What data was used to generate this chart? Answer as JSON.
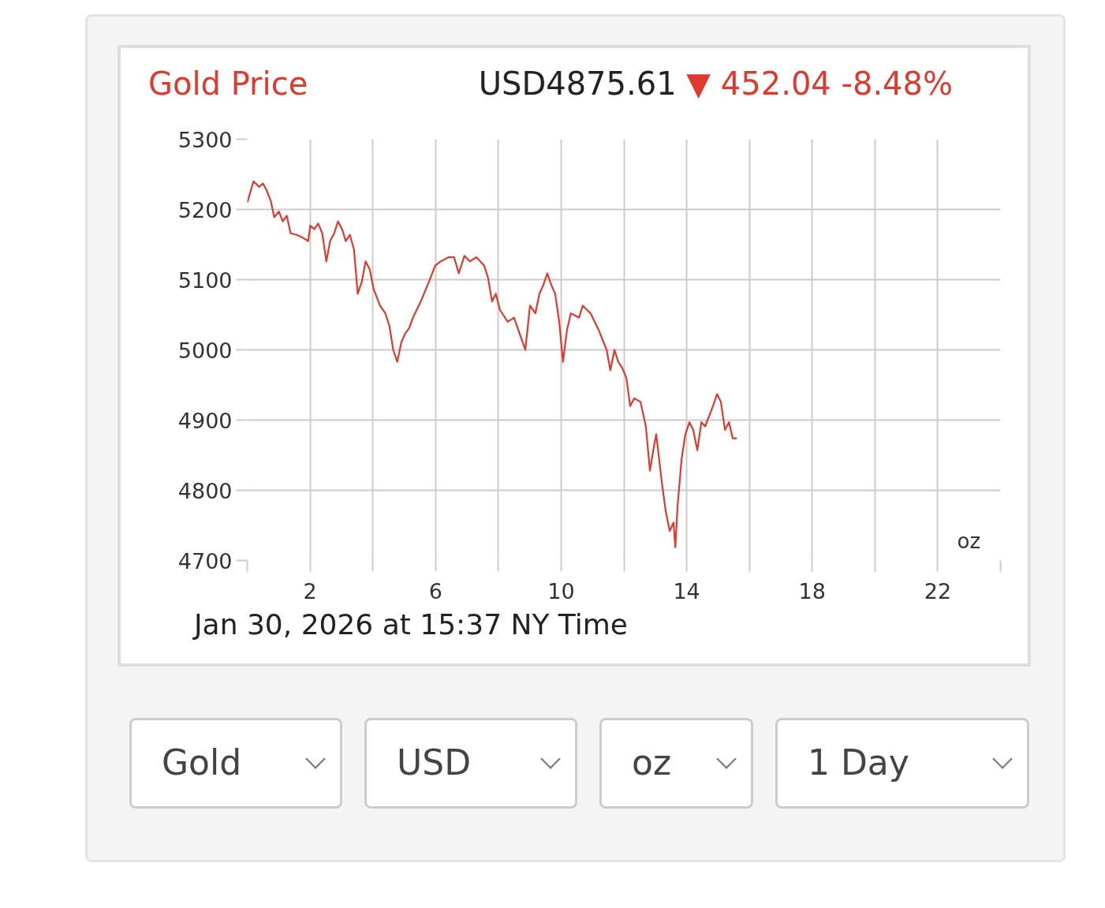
{
  "chart_data": {
    "type": "line",
    "title": "Gold Price",
    "annotations": [
      "USD4875.61",
      "▼ 452.04 -8.48%",
      "Jan 30, 2026 at 15:37 NY Time",
      "oz",
      "Gold",
      "USD",
      "oz",
      "1 Day"
    ],
    "series": [
      {
        "color": "#e03a2e",
        "x": [
          0,
          0.2,
          0.38,
          0.5,
          0.63,
          0.75,
          0.86,
          1.01,
          1.13,
          1.26,
          1.38,
          1.56,
          1.76,
          1.94,
          2.01,
          2.14,
          2.26,
          2.39,
          2.52,
          2.64,
          2.77,
          2.89,
          3.02,
          3.14,
          3.27,
          3.4,
          3.52,
          3.65,
          3.77,
          3.9,
          4.03,
          4.23,
          4.4,
          4.53,
          4.65,
          4.78,
          4.91,
          5.03,
          5.16,
          5.28,
          5.53,
          5.79,
          5.99,
          6.16,
          6.42,
          6.59,
          6.74,
          6.92,
          7.09,
          7.3,
          7.55,
          7.67,
          7.8,
          7.92,
          8.05,
          8.3,
          8.5,
          8.68,
          8.86,
          9.01,
          9.18,
          9.31,
          9.43,
          9.56,
          9.69,
          9.81,
          9.94,
          10.06,
          10.19,
          10.31,
          10.57,
          10.69,
          10.94,
          11.19,
          11.45,
          11.57,
          11.7,
          11.82,
          11.95,
          12.08,
          12.2,
          12.33,
          12.53,
          12.7,
          12.83,
          12.96,
          13.03,
          13.21,
          13.33,
          13.46,
          13.58,
          13.64,
          13.71,
          13.84,
          13.96,
          14.09,
          14.21,
          14.34,
          14.47,
          14.59,
          14.84,
          14.97,
          15.09,
          15.22,
          15.35,
          15.47,
          15.6
        ],
        "values": [
          5210,
          5240,
          5232,
          5237,
          5226,
          5212,
          5189,
          5197,
          5183,
          5191,
          5166,
          5164,
          5160,
          5155,
          5177,
          5172,
          5180,
          5166,
          5126,
          5155,
          5166,
          5183,
          5172,
          5155,
          5164,
          5143,
          5080,
          5097,
          5126,
          5115,
          5086,
          5063,
          5052,
          5034,
          5000,
          4983,
          5011,
          5023,
          5031,
          5046,
          5069,
          5097,
          5120,
          5126,
          5132,
          5132,
          5109,
          5134,
          5126,
          5132,
          5120,
          5103,
          5069,
          5080,
          5057,
          5040,
          5046,
          5023,
          5000,
          5063,
          5052,
          5080,
          5092,
          5109,
          5092,
          5080,
          5040,
          4983,
          5029,
          5052,
          5046,
          5063,
          5052,
          5029,
          5000,
          4971,
          5000,
          4983,
          4974,
          4960,
          4920,
          4931,
          4926,
          4891,
          4828,
          4863,
          4880,
          4811,
          4771,
          4742,
          4754,
          4719,
          4777,
          4845,
          4880,
          4897,
          4886,
          4857,
          4897,
          4891,
          4920,
          4937,
          4926,
          4886,
          4897,
          4874,
          4874
        ]
      }
    ],
    "xlim": [
      0,
      24
    ],
    "xticks": [
      {
        "value": 0,
        "label": null
      },
      2,
      {
        "value": 4,
        "label": null
      },
      6,
      {
        "value": 8,
        "label": null
      },
      10,
      {
        "value": 12,
        "label": null
      },
      14,
      {
        "value": 16,
        "label": null
      },
      18,
      {
        "value": 20,
        "label": null
      },
      22,
      {
        "value": 24,
        "label": null
      }
    ],
    "ylim": [
      4700,
      5300
    ],
    "yticks": [
      4700,
      4800,
      4900,
      5000,
      5100,
      5200,
      5300
    ],
    "grid": true
  }
}
